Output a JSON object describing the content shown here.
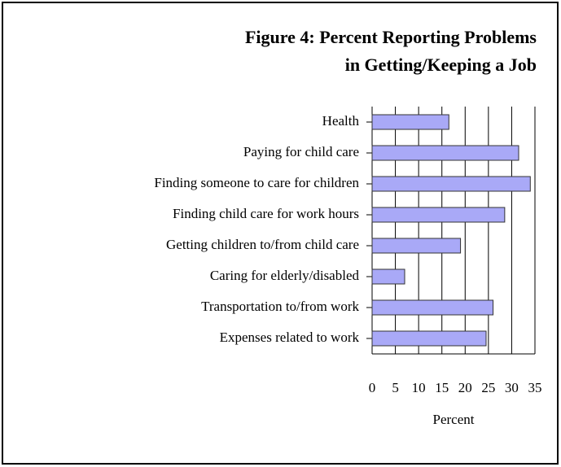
{
  "chart_data": {
    "type": "bar",
    "orientation": "horizontal",
    "title": [
      "Figure 4: Percent Reporting Problems",
      "in Getting/Keeping a Job"
    ],
    "categories": [
      "Health",
      "Paying for child care",
      "Finding someone to care for children",
      "Finding child care for work hours",
      "Getting children to/from child care",
      "Caring for elderly/disabled",
      "Transportation to/from work",
      "Expenses related to work"
    ],
    "values": [
      16.5,
      31.5,
      34,
      28.5,
      19,
      7,
      26,
      24.5
    ],
    "color": "#a9a9f7",
    "xlim": [
      0,
      35
    ],
    "xticks": [
      0,
      5,
      10,
      15,
      20,
      25,
      30,
      35
    ],
    "xlabel": "Percent",
    "grid": true
  }
}
